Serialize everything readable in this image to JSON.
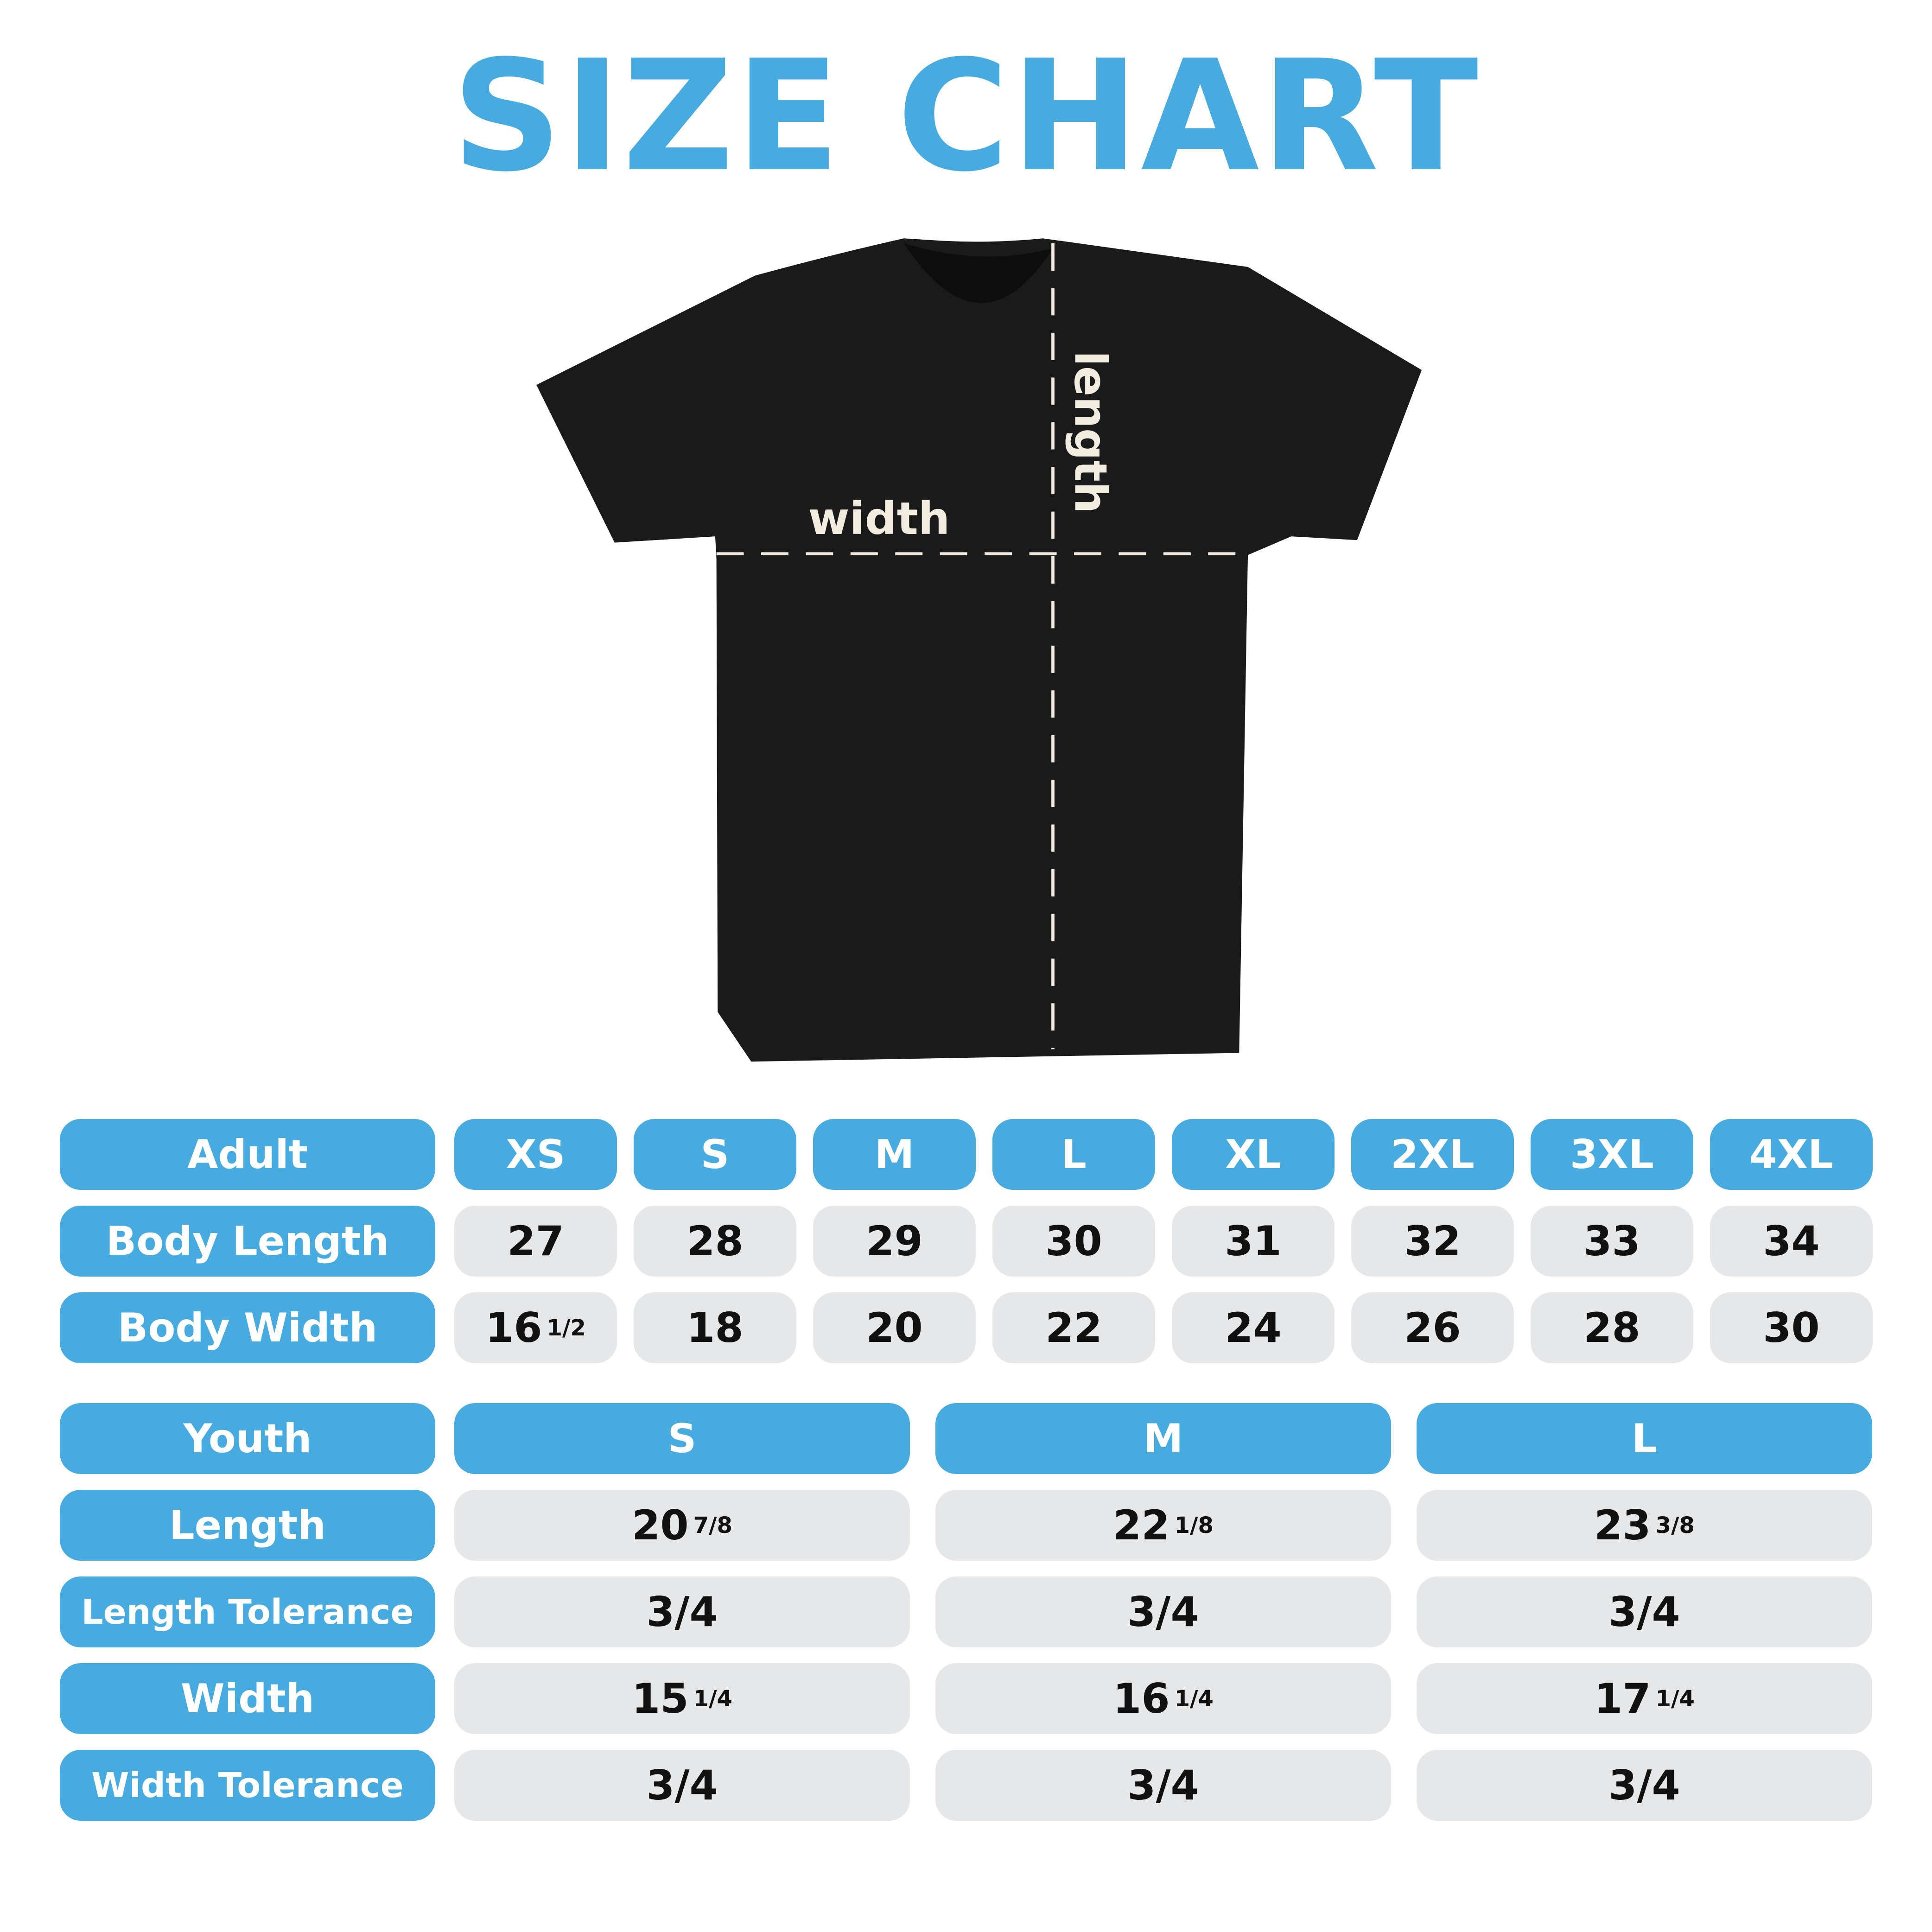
{
  "title": "SIZE CHART",
  "shirt": {
    "width_label": "width",
    "length_label": "length",
    "color": "#1A1A1A"
  },
  "colors": {
    "accent": "#47ABE0",
    "cell_bg": "#E6E7E8"
  },
  "adult": {
    "header": "Adult",
    "sizes": [
      "XS",
      "S",
      "M",
      "L",
      "XL",
      "2XL",
      "3XL",
      "4XL"
    ],
    "rows": [
      {
        "label": "Body Length",
        "values": [
          {
            "whole": "27",
            "frac": ""
          },
          {
            "whole": "28",
            "frac": ""
          },
          {
            "whole": "29",
            "frac": ""
          },
          {
            "whole": "30",
            "frac": ""
          },
          {
            "whole": "31",
            "frac": ""
          },
          {
            "whole": "32",
            "frac": ""
          },
          {
            "whole": "33",
            "frac": ""
          },
          {
            "whole": "34",
            "frac": ""
          }
        ]
      },
      {
        "label": "Body Width",
        "values": [
          {
            "whole": "16",
            "frac": "1/2"
          },
          {
            "whole": "18",
            "frac": ""
          },
          {
            "whole": "20",
            "frac": ""
          },
          {
            "whole": "22",
            "frac": ""
          },
          {
            "whole": "24",
            "frac": ""
          },
          {
            "whole": "26",
            "frac": ""
          },
          {
            "whole": "28",
            "frac": ""
          },
          {
            "whole": "30",
            "frac": ""
          }
        ]
      }
    ]
  },
  "youth": {
    "header": "Youth",
    "sizes": [
      "S",
      "M",
      "L"
    ],
    "rows": [
      {
        "label": "Length",
        "values": [
          {
            "whole": "20",
            "frac": "7/8"
          },
          {
            "whole": "22",
            "frac": "1/8"
          },
          {
            "whole": "23",
            "frac": "3/8"
          }
        ]
      },
      {
        "label": "Length Tolerance",
        "values": [
          {
            "whole": "3/4",
            "frac": ""
          },
          {
            "whole": "3/4",
            "frac": ""
          },
          {
            "whole": "3/4",
            "frac": ""
          }
        ]
      },
      {
        "label": "Width",
        "values": [
          {
            "whole": "15",
            "frac": "1/4"
          },
          {
            "whole": "16",
            "frac": "1/4"
          },
          {
            "whole": "17",
            "frac": "1/4"
          }
        ]
      },
      {
        "label": "Width Tolerance",
        "values": [
          {
            "whole": "3/4",
            "frac": ""
          },
          {
            "whole": "3/4",
            "frac": ""
          },
          {
            "whole": "3/4",
            "frac": ""
          }
        ]
      }
    ]
  }
}
